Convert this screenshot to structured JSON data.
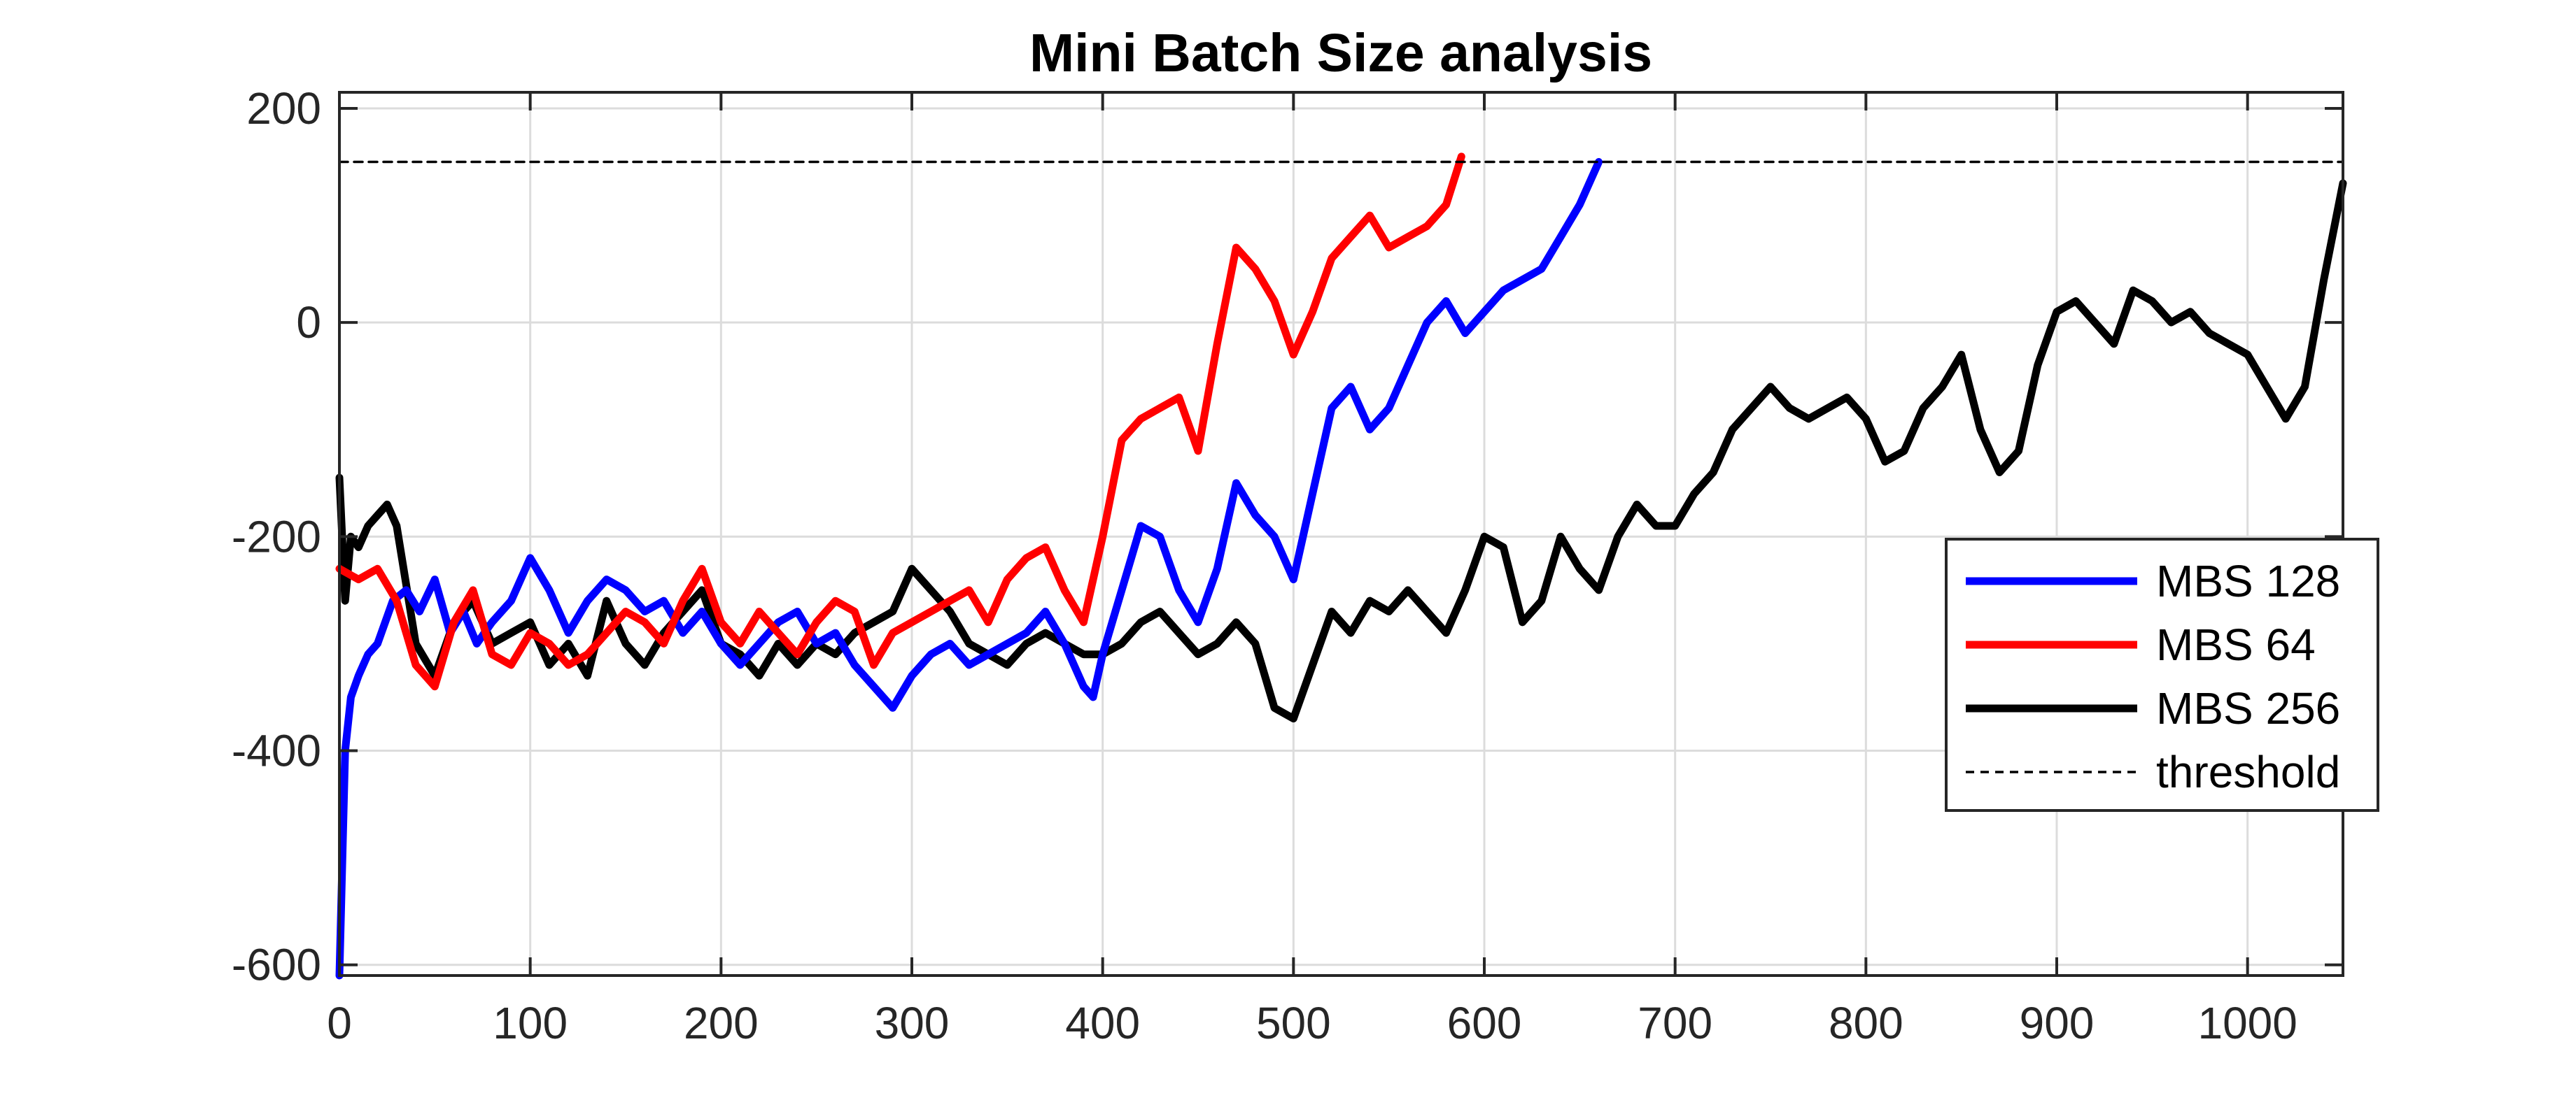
{
  "chart_data": {
    "type": "line",
    "title": "Mini Batch Size analysis",
    "xlabel": "",
    "ylabel": "",
    "xlim": [
      0,
      1050
    ],
    "ylim": [
      -610,
      215
    ],
    "xticks": [
      0,
      100,
      200,
      300,
      400,
      500,
      600,
      700,
      800,
      900,
      1000
    ],
    "yticks": [
      -600,
      -400,
      -200,
      0,
      200
    ],
    "grid": true,
    "legend_position": "right",
    "series": [
      {
        "name": "MBS 128",
        "color": "#0000ff",
        "x": [
          0,
          3,
          6,
          10,
          15,
          20,
          28,
          35,
          42,
          50,
          58,
          65,
          72,
          80,
          90,
          100,
          110,
          120,
          130,
          140,
          150,
          160,
          170,
          180,
          190,
          200,
          210,
          220,
          230,
          240,
          250,
          260,
          270,
          280,
          290,
          300,
          310,
          320,
          330,
          340,
          350,
          360,
          370,
          380,
          390,
          395,
          400,
          410,
          420,
          430,
          440,
          450,
          460,
          470,
          480,
          490,
          500,
          510,
          520,
          530,
          540,
          550,
          560,
          570,
          580,
          590,
          600,
          610,
          620,
          630,
          640,
          650,
          660
        ],
        "y": [
          -610,
          -400,
          -350,
          -330,
          -310,
          -300,
          -260,
          -250,
          -270,
          -240,
          -290,
          -270,
          -300,
          -280,
          -260,
          -220,
          -250,
          -290,
          -260,
          -240,
          -250,
          -270,
          -260,
          -290,
          -270,
          -300,
          -320,
          -300,
          -280,
          -270,
          -300,
          -290,
          -320,
          -340,
          -360,
          -330,
          -310,
          -300,
          -320,
          -310,
          -300,
          -290,
          -270,
          -300,
          -340,
          -350,
          -310,
          -250,
          -190,
          -200,
          -250,
          -280,
          -230,
          -150,
          -180,
          -200,
          -240,
          -160,
          -80,
          -60,
          -100,
          -80,
          -40,
          0,
          20,
          -10,
          10,
          30,
          40,
          50,
          80,
          110,
          150
        ]
      },
      {
        "name": "MBS 64",
        "color": "#ff0000",
        "x": [
          0,
          10,
          20,
          30,
          40,
          50,
          60,
          70,
          80,
          90,
          100,
          110,
          120,
          130,
          140,
          150,
          160,
          170,
          180,
          190,
          200,
          210,
          220,
          230,
          240,
          250,
          260,
          270,
          280,
          290,
          300,
          310,
          320,
          330,
          340,
          350,
          360,
          370,
          380,
          390,
          400,
          410,
          420,
          430,
          440,
          450,
          460,
          470,
          480,
          490,
          500,
          510,
          520,
          530,
          540,
          550,
          560,
          570,
          580,
          588
        ],
        "y": [
          -230,
          -240,
          -230,
          -260,
          -320,
          -340,
          -280,
          -250,
          -310,
          -320,
          -290,
          -300,
          -320,
          -310,
          -290,
          -270,
          -280,
          -300,
          -260,
          -230,
          -280,
          -300,
          -270,
          -290,
          -310,
          -280,
          -260,
          -270,
          -320,
          -290,
          -280,
          -270,
          -260,
          -250,
          -280,
          -240,
          -220,
          -210,
          -250,
          -280,
          -200,
          -110,
          -90,
          -80,
          -70,
          -120,
          -20,
          70,
          50,
          20,
          -30,
          10,
          60,
          80,
          100,
          70,
          80,
          90,
          110,
          155
        ]
      },
      {
        "name": "MBS 256",
        "color": "#000000",
        "x": [
          0,
          3,
          6,
          10,
          15,
          20,
          25,
          30,
          40,
          50,
          60,
          70,
          80,
          90,
          100,
          110,
          120,
          130,
          140,
          150,
          160,
          170,
          180,
          190,
          200,
          210,
          220,
          230,
          240,
          250,
          260,
          270,
          280,
          290,
          300,
          310,
          320,
          330,
          340,
          350,
          360,
          370,
          380,
          390,
          400,
          410,
          420,
          430,
          440,
          450,
          460,
          470,
          480,
          490,
          500,
          510,
          520,
          530,
          540,
          550,
          560,
          570,
          580,
          590,
          600,
          610,
          620,
          630,
          640,
          650,
          660,
          670,
          680,
          690,
          700,
          710,
          720,
          730,
          740,
          750,
          760,
          770,
          780,
          790,
          800,
          810,
          820,
          830,
          840,
          850,
          860,
          870,
          880,
          890,
          900,
          910,
          920,
          930,
          940,
          950,
          960,
          970,
          980,
          990,
          1000,
          1010,
          1020,
          1030,
          1040,
          1050
        ],
        "y": [
          -145,
          -260,
          -200,
          -210,
          -190,
          -180,
          -170,
          -190,
          -300,
          -330,
          -280,
          -260,
          -300,
          -290,
          -280,
          -320,
          -300,
          -330,
          -260,
          -300,
          -320,
          -290,
          -270,
          -250,
          -300,
          -310,
          -330,
          -300,
          -320,
          -300,
          -310,
          -290,
          -280,
          -270,
          -230,
          -250,
          -270,
          -300,
          -310,
          -320,
          -300,
          -290,
          -300,
          -310,
          -310,
          -300,
          -280,
          -270,
          -290,
          -310,
          -300,
          -280,
          -300,
          -360,
          -370,
          -320,
          -270,
          -290,
          -260,
          -270,
          -250,
          -270,
          -290,
          -250,
          -200,
          -210,
          -280,
          -260,
          -200,
          -230,
          -250,
          -200,
          -170,
          -190,
          -190,
          -160,
          -140,
          -100,
          -80,
          -60,
          -80,
          -90,
          -80,
          -70,
          -90,
          -130,
          -120,
          -80,
          -60,
          -30,
          -100,
          -140,
          -120,
          -40,
          10,
          20,
          0,
          -20,
          30,
          20,
          0,
          10,
          -10,
          -20,
          -30,
          -60,
          -90,
          -60,
          40,
          130
        ]
      },
      {
        "name": "threshold",
        "color": "#000000",
        "dashed": true,
        "x": [
          0,
          1050
        ],
        "y": [
          150,
          150
        ]
      }
    ]
  }
}
